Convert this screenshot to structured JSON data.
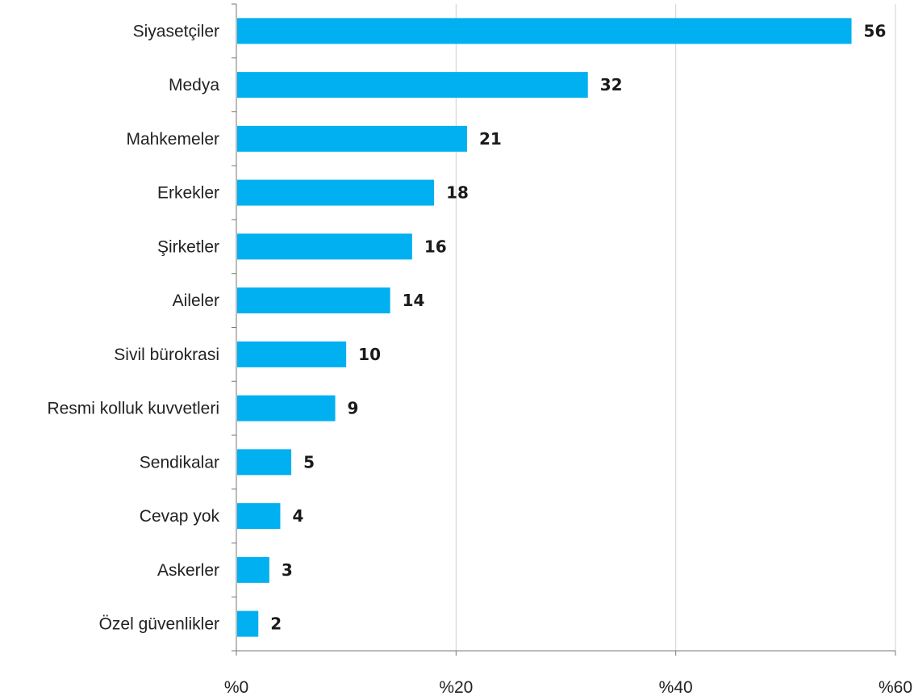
{
  "chart_data": {
    "type": "bar",
    "orientation": "horizontal",
    "title": "",
    "xlabel": "",
    "ylabel": "",
    "categories": [
      "Siyasetçiler",
      "Medya",
      "Mahkemeler",
      "Erkekler",
      "Şirketler",
      "Aileler",
      "Sivil bürokrasi",
      "Resmi kolluk kuvvetleri",
      "Sendikalar",
      "Cevap yok",
      "Askerler",
      "Özel güvenlikler"
    ],
    "values": [
      56,
      32,
      21,
      18,
      16,
      14,
      10,
      9,
      5,
      4,
      3,
      2
    ],
    "xlim": [
      0,
      60
    ],
    "xticks": [
      0,
      20,
      40,
      60
    ],
    "xtick_labels": [
      "%0",
      "%20",
      "%40",
      "%60"
    ],
    "grid": true,
    "bar_color": "#00b0f0",
    "data_labels": [
      "56",
      "32",
      "21",
      "18",
      "16",
      "14",
      "10",
      "9",
      "5",
      "4",
      "3",
      "2"
    ]
  }
}
